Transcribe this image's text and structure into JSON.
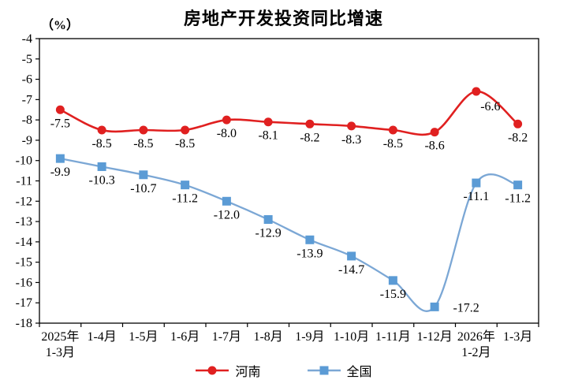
{
  "chart_data": {
    "type": "line",
    "title": "房地产开发投资同比增速",
    "unit": "（%）",
    "categories": [
      "2025年\n1-3月",
      "1-4月",
      "1-5月",
      "1-6月",
      "1-7月",
      "1-8月",
      "1-9月",
      "1-10月",
      "1-11月",
      "1-12月",
      "2026年\n1-2月",
      "1-3月"
    ],
    "series": [
      {
        "name": "河南",
        "marker": "circle",
        "line_color": "#e02020",
        "marker_color": "#e02020",
        "values": [
          -7.5,
          -8.5,
          -8.5,
          -8.5,
          -8.0,
          -8.1,
          -8.2,
          -8.3,
          -8.5,
          -8.6,
          -6.6,
          -8.2
        ]
      },
      {
        "name": "全国",
        "marker": "square",
        "line_color": "#7ba7d5",
        "marker_color": "#5b9bd5",
        "values": [
          -9.9,
          -10.3,
          -10.7,
          -11.2,
          -12.0,
          -12.9,
          -13.9,
          -14.7,
          -15.9,
          -17.2,
          -11.1,
          -11.2
        ]
      }
    ],
    "ylim": [
      -18,
      -4
    ],
    "ytick_step": 1,
    "grid": false,
    "legend_position": "bottom",
    "axis_color": "#000000",
    "label_color": "#000000"
  }
}
